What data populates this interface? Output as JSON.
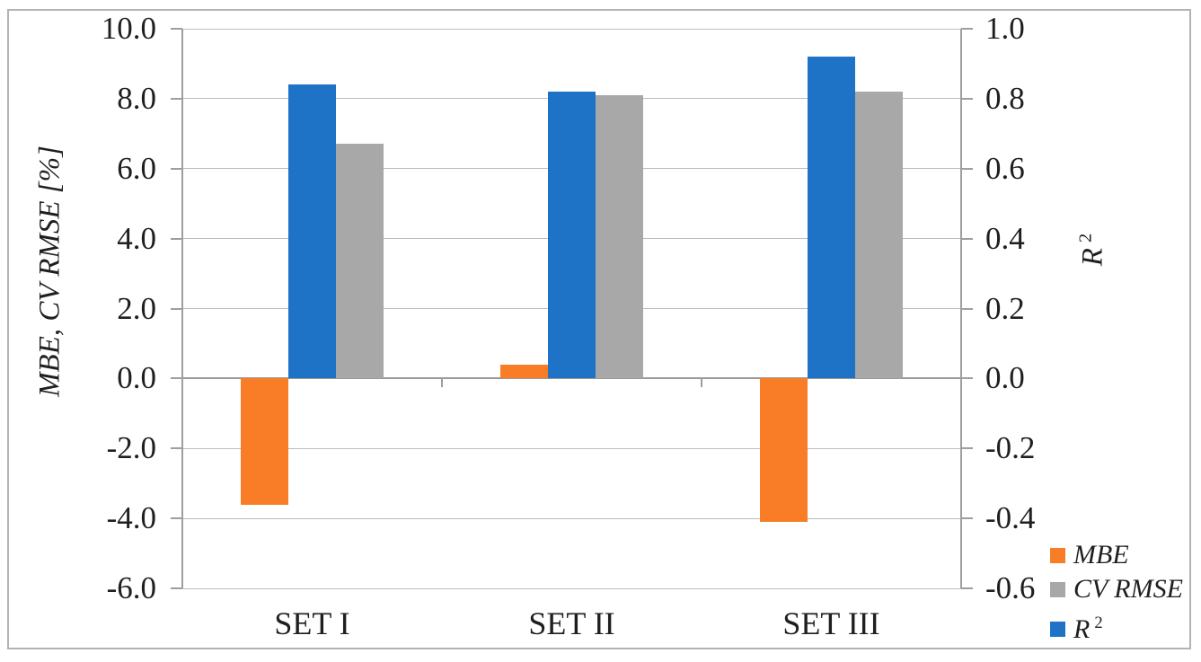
{
  "chart_data": {
    "type": "bar",
    "title": "",
    "categories": [
      "SET I",
      "SET II",
      "SET III"
    ],
    "series": [
      {
        "name": "MBE",
        "axis": "left",
        "color": "#f97d26",
        "values": [
          -3.6,
          0.4,
          -4.1
        ]
      },
      {
        "name": "CV RMSE",
        "axis": "left",
        "color": "#a8a8a8",
        "values": [
          6.7,
          8.1,
          8.2
        ]
      },
      {
        "name": "R2",
        "axis": "right",
        "color": "#1e73c6",
        "values": [
          0.84,
          0.82,
          0.92
        ]
      }
    ],
    "bar_order": [
      "MBE",
      "R2",
      "CV RMSE"
    ],
    "left_axis": {
      "title": "MBE, CV RMSE [%]",
      "min": -6.0,
      "max": 10.0,
      "step": 2.0,
      "tick_values": [
        10,
        8,
        6,
        4,
        2,
        0,
        -2,
        -4,
        -6
      ],
      "tick_labels": [
        "10.0",
        "8.0",
        "6.0",
        "4.0",
        "2.0",
        "0.0",
        "-2.0",
        "-4.0",
        "-6.0"
      ]
    },
    "right_axis": {
      "title_base": "R",
      "title_sup": "2",
      "min": -0.6,
      "max": 1.0,
      "step": 0.2,
      "tick_labels": [
        "1.0",
        "0.8",
        "0.6",
        "0.4",
        "0.2",
        "0.0",
        "-0.2",
        "-0.4",
        "-0.6"
      ]
    },
    "grid": true,
    "legend_position": "bottom-right"
  },
  "legend": {
    "items": [
      {
        "label": "MBE",
        "color": "#f97d26"
      },
      {
        "label": "CV RMSE",
        "color": "#a8a8a8"
      },
      {
        "label": "R",
        "sup": "2",
        "color": "#1e73c6"
      }
    ]
  },
  "colors": {
    "orange": "#f97d26",
    "gray": "#a8a8a8",
    "blue": "#1e73c6",
    "gridline": "#bcbcbc",
    "axis": "#9e9e9e",
    "frame": "#b3b3b3",
    "text": "#1f1f1f"
  }
}
